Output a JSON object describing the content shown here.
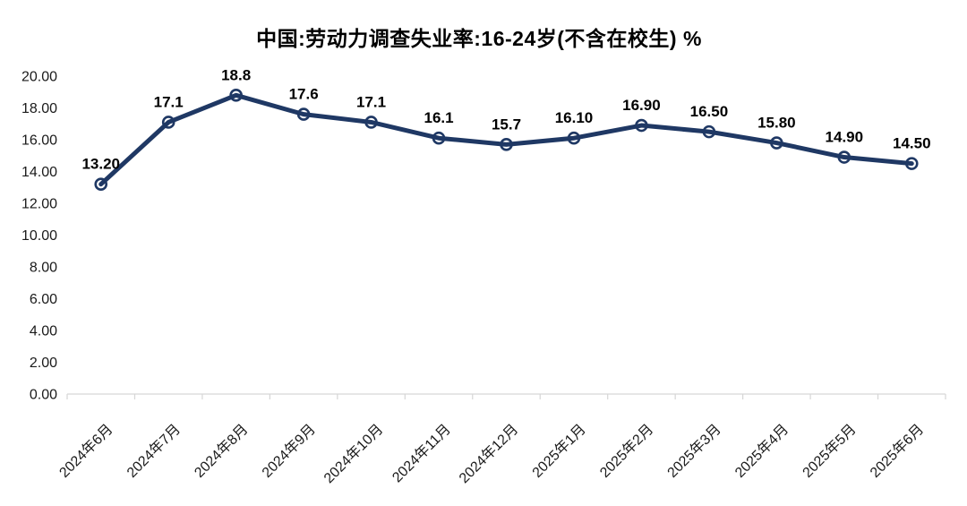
{
  "chart_data": {
    "type": "line",
    "title": "中国:劳动力调查失业率:16-24岁(不含在校生) %",
    "categories": [
      "2024年6月",
      "2024年7月",
      "2024年8月",
      "2024年9月",
      "2024年10月",
      "2024年11月",
      "2024年12月",
      "2025年1月",
      "2025年2月",
      "2025年3月",
      "2025年4月",
      "2025年5月",
      "2025年6月"
    ],
    "values": [
      13.2,
      17.1,
      18.8,
      17.6,
      17.1,
      16.1,
      15.7,
      16.1,
      16.9,
      16.5,
      15.8,
      14.9,
      14.5
    ],
    "point_labels": [
      "13.20",
      "17.1",
      "18.8",
      "17.6",
      "17.1",
      "16.1",
      "15.7",
      "16.10",
      "16.90",
      "16.50",
      "15.80",
      "14.90",
      "14.50"
    ],
    "y_ticks": [
      "0.00",
      "2.00",
      "4.00",
      "6.00",
      "8.00",
      "10.00",
      "12.00",
      "14.00",
      "16.00",
      "18.00",
      "20.00"
    ],
    "xlabel": "",
    "ylabel": "",
    "ylim": [
      0,
      20
    ],
    "grid": false,
    "legend": "none",
    "series_color": "#1f3864",
    "label_color": "#000000",
    "axis_text_color": "#1a1a1a",
    "axis_line_color": "#d6d6d6"
  }
}
